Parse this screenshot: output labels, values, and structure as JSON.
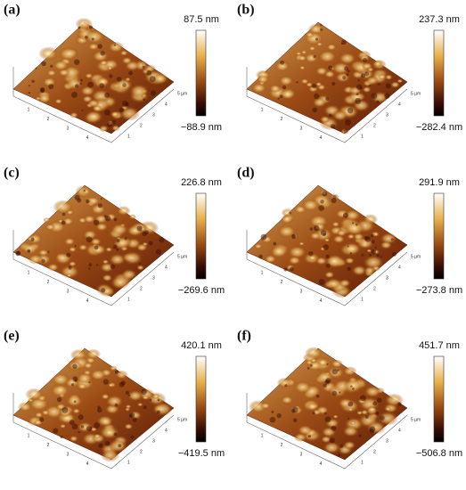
{
  "panels": [
    {
      "label": "(a)",
      "scale_max": "87.5 nm",
      "scale_min": "−88.9 nm",
      "x_ticks": [
        "1",
        "2",
        "3",
        "4",
        "5 µm"
      ],
      "y_ticks": [
        "1",
        "2",
        "3",
        "4"
      ]
    },
    {
      "label": "(b)",
      "scale_max": "237.3 nm",
      "scale_min": "−282.4 nm",
      "x_ticks": [
        "1",
        "2",
        "3",
        "4",
        "5 µm"
      ],
      "y_ticks": [
        "1",
        "2",
        "3",
        "4"
      ]
    },
    {
      "label": "(c)",
      "scale_max": "226.8 nm",
      "scale_min": "−269.6 nm",
      "x_ticks": [
        "1",
        "2",
        "3",
        "4",
        "5 µm"
      ],
      "y_ticks": [
        "1",
        "2",
        "3",
        "4"
      ]
    },
    {
      "label": "(d)",
      "scale_max": "291.9 nm",
      "scale_min": "−273.8 nm",
      "x_ticks": [
        "1",
        "2",
        "3",
        "4",
        "5 µm"
      ],
      "y_ticks": [
        "1",
        "2",
        "3",
        "4"
      ]
    },
    {
      "label": "(e)",
      "scale_max": "420.1 nm",
      "scale_min": "−419.5 nm",
      "x_ticks": [
        "1",
        "2",
        "3",
        "4",
        "5 µm"
      ],
      "y_ticks": [
        "1",
        "2",
        "3",
        "4"
      ]
    },
    {
      "label": "(f)",
      "scale_max": "451.7 nm",
      "scale_min": "−506.8 nm",
      "x_ticks": [
        "1",
        "2",
        "3",
        "4",
        "5 µm"
      ],
      "y_ticks": [
        "1",
        "2",
        "3",
        "4"
      ]
    }
  ]
}
